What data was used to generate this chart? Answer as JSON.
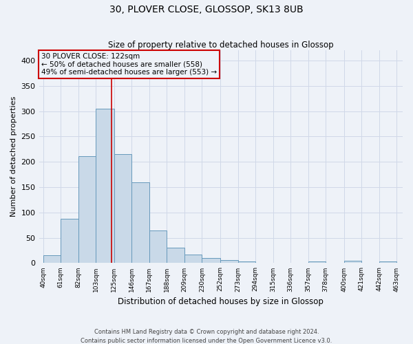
{
  "title": "30, PLOVER CLOSE, GLOSSOP, SK13 8UB",
  "subtitle": "Size of property relative to detached houses in Glossop",
  "xlabel": "Distribution of detached houses by size in Glossop",
  "ylabel": "Number of detached properties",
  "footer_line1": "Contains HM Land Registry data © Crown copyright and database right 2024.",
  "footer_line2": "Contains public sector information licensed under the Open Government Licence v3.0.",
  "annotation_line1": "30 PLOVER CLOSE: 122sqm",
  "annotation_line2": "← 50% of detached houses are smaller (558)",
  "annotation_line3": "49% of semi-detached houses are larger (553) →",
  "property_size": 122,
  "bar_left_edges": [
    40,
    61,
    82,
    103,
    125,
    146,
    167,
    188,
    209,
    230,
    252,
    273,
    294,
    315,
    336,
    357,
    378,
    400,
    421,
    442
  ],
  "bar_widths": [
    21,
    21,
    21,
    22,
    21,
    21,
    21,
    21,
    21,
    22,
    21,
    21,
    21,
    21,
    21,
    21,
    22,
    21,
    21,
    21
  ],
  "bar_heights": [
    15,
    88,
    211,
    305,
    215,
    160,
    65,
    30,
    17,
    10,
    6,
    3,
    1,
    1,
    1,
    3,
    1,
    4,
    1,
    3
  ],
  "bar_color": "#c9d9e8",
  "bar_edge_color": "#6699bb",
  "redline_color": "#cc0000",
  "annotation_box_edge": "#cc0000",
  "grid_color": "#d0d8e8",
  "background_color": "#eef2f8",
  "ylim": [
    0,
    420
  ],
  "xlim": [
    35,
    470
  ],
  "yticks": [
    0,
    50,
    100,
    150,
    200,
    250,
    300,
    350,
    400
  ],
  "tick_labels": [
    "40sqm",
    "61sqm",
    "82sqm",
    "103sqm",
    "125sqm",
    "146sqm",
    "167sqm",
    "188sqm",
    "209sqm",
    "230sqm",
    "252sqm",
    "273sqm",
    "294sqm",
    "315sqm",
    "336sqm",
    "357sqm",
    "378sqm",
    "400sqm",
    "421sqm",
    "442sqm",
    "463sqm"
  ],
  "tick_positions": [
    40,
    61,
    82,
    103,
    125,
    146,
    167,
    188,
    209,
    230,
    252,
    273,
    294,
    315,
    336,
    357,
    378,
    400,
    421,
    442,
    463
  ]
}
